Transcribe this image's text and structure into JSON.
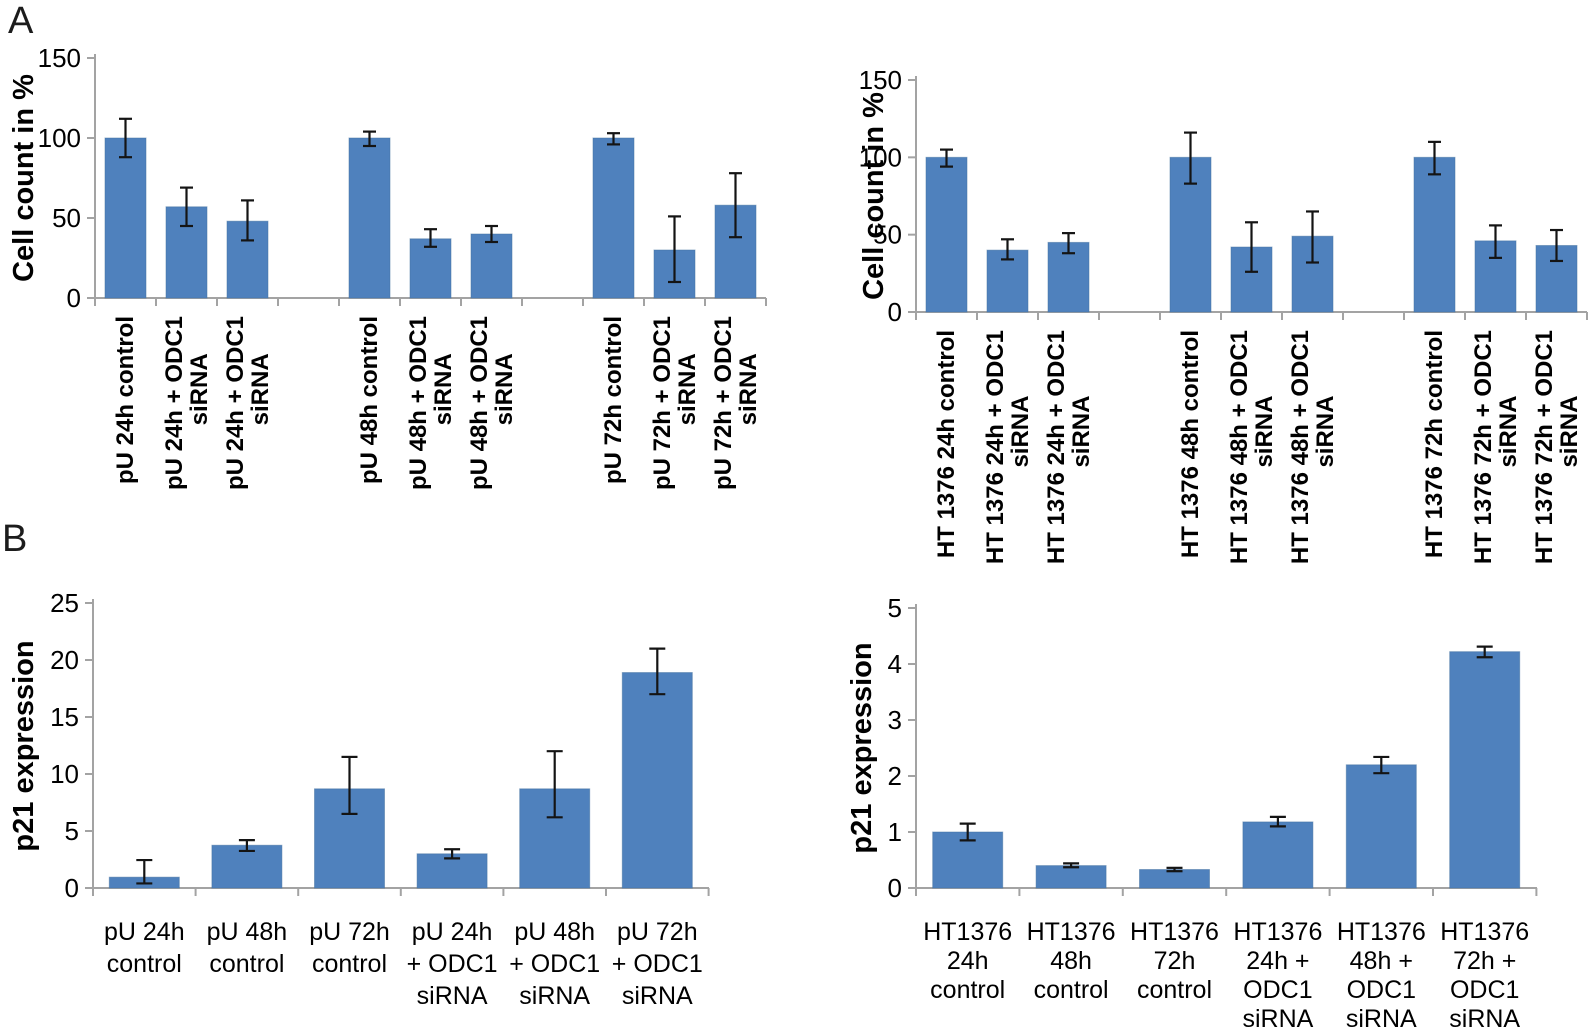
{
  "panels": {
    "a_label": "A",
    "b_label": "B"
  },
  "colors": {
    "bar": "#4f81bd",
    "bar_border": "#44719f",
    "axis": "#a3a3a3",
    "error": "#141414",
    "text": "#000000"
  },
  "chart_data": [
    {
      "id": "cell-count-pu",
      "panel": "A",
      "type": "bar",
      "title": "",
      "xlabel": "",
      "ylabel": "Cell count in %",
      "ylim": [
        0,
        150
      ],
      "yticks": [
        0,
        50,
        100,
        150
      ],
      "grid": false,
      "legend": "none",
      "categories": [
        [
          "pU 24h control"
        ],
        [
          "pU 24h + ODC1",
          "siRNA"
        ],
        [
          "pU 24h + ODC1",
          "siRNA"
        ],
        [
          "pU 48h control"
        ],
        [
          "pU 48h + ODC1",
          "siRNA"
        ],
        [
          "pU 48h + ODC1",
          "siRNA"
        ],
        [
          "pU 72h control"
        ],
        [
          "pU 72h + ODC1",
          "siRNA"
        ],
        [
          "pU 72h + ODC1",
          "siRNA"
        ]
      ],
      "values": [
        100,
        57,
        48,
        100,
        37,
        40,
        100,
        30,
        58
      ],
      "error_low": [
        88,
        45,
        36,
        95,
        32,
        35,
        96,
        10,
        38
      ],
      "error_high": [
        112,
        69,
        61,
        104,
        43,
        45,
        103,
        51,
        78
      ]
    },
    {
      "id": "cell-count-ht1376",
      "panel": "A",
      "type": "bar",
      "title": "",
      "xlabel": "",
      "ylabel": "Cell count in %",
      "ylim": [
        0,
        150
      ],
      "yticks": [
        0,
        50,
        100,
        150
      ],
      "grid": false,
      "legend": "none",
      "categories": [
        [
          "HT 1376 24h control"
        ],
        [
          "HT 1376 24h + ODC1",
          "siRNA"
        ],
        [
          "HT 1376 24h + ODC1",
          "siRNA"
        ],
        [
          "HT 1376 48h control"
        ],
        [
          "HT 1376 48h + ODC1",
          "siRNA"
        ],
        [
          "HT 1376 48h + ODC1",
          "siRNA"
        ],
        [
          "HT 1376 72h control"
        ],
        [
          "HT 1376 72h + ODC1",
          "siRNA"
        ],
        [
          "HT 1376 72h + ODC1",
          "siRNA"
        ]
      ],
      "values": [
        100,
        40,
        45,
        100,
        42,
        49,
        100,
        46,
        43
      ],
      "error_low": [
        94,
        34,
        38,
        83,
        26,
        32,
        89,
        35,
        33
      ],
      "error_high": [
        105,
        47,
        51,
        116,
        58,
        65,
        110,
        56,
        53
      ]
    },
    {
      "id": "p21-pu",
      "panel": "B",
      "type": "bar",
      "title": "",
      "xlabel": "",
      "ylabel": "p21 expression",
      "ylim": [
        0,
        25
      ],
      "yticks": [
        0,
        5,
        10,
        15,
        20,
        25
      ],
      "grid": false,
      "legend": "none",
      "categories": [
        [
          "pU 24h",
          "control"
        ],
        [
          "pU 48h",
          "control"
        ],
        [
          "pU 72h",
          "control"
        ],
        [
          "pU 24h",
          "+ ODC1",
          "siRNA"
        ],
        [
          "pU 48h",
          "+ ODC1",
          "siRNA"
        ],
        [
          "pU 72h",
          "+ ODC1",
          "siRNA"
        ]
      ],
      "values": [
        0.95,
        3.75,
        8.7,
        3.0,
        8.7,
        18.9
      ],
      "error_low": [
        0.4,
        3.25,
        6.5,
        2.6,
        6.2,
        17.0
      ],
      "error_high": [
        2.45,
        4.2,
        11.5,
        3.4,
        12.0,
        21.0
      ]
    },
    {
      "id": "p21-ht1376",
      "panel": "B",
      "type": "bar",
      "title": "",
      "xlabel": "",
      "ylabel": "p21 expression",
      "ylim": [
        0,
        5
      ],
      "yticks": [
        0,
        1,
        2,
        3,
        4,
        5
      ],
      "grid": false,
      "legend": "none",
      "categories": [
        [
          "HT1376",
          "24h",
          "control"
        ],
        [
          "HT1376",
          "48h",
          "control"
        ],
        [
          "HT1376",
          "72h",
          "control"
        ],
        [
          "HT1376",
          "24h +",
          "ODC1",
          "siRNA"
        ],
        [
          "HT1376",
          "48h +",
          "ODC1",
          "siRNA"
        ],
        [
          "HT1376",
          "72h +",
          "ODC1",
          "siRNA"
        ]
      ],
      "values": [
        1.0,
        0.4,
        0.33,
        1.18,
        2.2,
        4.22
      ],
      "error_low": [
        0.85,
        0.37,
        0.3,
        1.1,
        2.05,
        4.12
      ],
      "error_high": [
        1.15,
        0.44,
        0.36,
        1.27,
        2.34,
        4.31
      ]
    }
  ]
}
